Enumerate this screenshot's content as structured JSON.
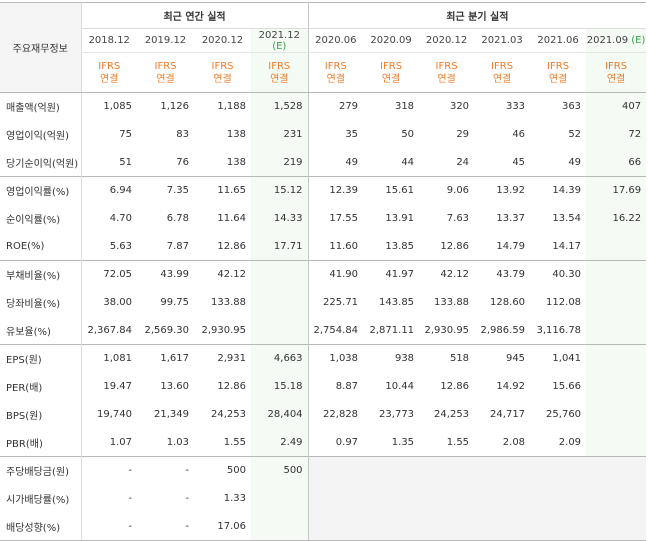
{
  "table": {
    "corner_label": "주요재무정보",
    "annual_header": "최근 연간 실적",
    "quarter_header": "최근 분기 실적",
    "annual_periods": [
      "2018.12",
      "2019.12",
      "2020.12",
      "2021.12"
    ],
    "annual_estimate_marker": "(E)",
    "quarter_periods": [
      "2020.06",
      "2020.09",
      "2020.12",
      "2021.03",
      "2021.06",
      "2021.09"
    ],
    "quarter_estimate_marker": "(E)",
    "ifrs_line1": "IFRS",
    "ifrs_line2": "연결",
    "rows": [
      {
        "label": "매출액(억원)",
        "annual": [
          "1,085",
          "1,126",
          "1,188",
          "1,528"
        ],
        "quarter": [
          "279",
          "318",
          "320",
          "333",
          "363",
          "407"
        ]
      },
      {
        "label": "영업이익(억원)",
        "annual": [
          "75",
          "83",
          "138",
          "231"
        ],
        "quarter": [
          "35",
          "50",
          "29",
          "46",
          "52",
          "72"
        ]
      },
      {
        "label": "당기순이익(억원)",
        "annual": [
          "51",
          "76",
          "138",
          "219"
        ],
        "quarter": [
          "49",
          "44",
          "24",
          "45",
          "49",
          "66"
        ]
      },
      {
        "label": "영업이익률(%)",
        "annual": [
          "6.94",
          "7.35",
          "11.65",
          "15.12"
        ],
        "quarter": [
          "12.39",
          "15.61",
          "9.06",
          "13.92",
          "14.39",
          "17.69"
        ]
      },
      {
        "label": "순이익률(%)",
        "annual": [
          "4.70",
          "6.78",
          "11.64",
          "14.33"
        ],
        "quarter": [
          "17.55",
          "13.91",
          "7.63",
          "13.37",
          "13.54",
          "16.22"
        ]
      },
      {
        "label": "ROE(%)",
        "annual": [
          "5.63",
          "7.87",
          "12.86",
          "17.71"
        ],
        "quarter": [
          "11.60",
          "13.85",
          "12.86",
          "14.79",
          "14.17",
          ""
        ]
      },
      {
        "label": "부채비율(%)",
        "annual": [
          "72.05",
          "43.99",
          "42.12",
          ""
        ],
        "quarter": [
          "41.90",
          "41.97",
          "42.12",
          "43.79",
          "40.30",
          ""
        ]
      },
      {
        "label": "당좌비율(%)",
        "annual": [
          "38.00",
          "99.75",
          "133.88",
          ""
        ],
        "quarter": [
          "225.71",
          "143.85",
          "133.88",
          "128.60",
          "112.08",
          ""
        ]
      },
      {
        "label": "유보율(%)",
        "annual": [
          "2,367.84",
          "2,569.30",
          "2,930.95",
          ""
        ],
        "quarter": [
          "2,754.84",
          "2,871.11",
          "2,930.95",
          "2,986.59",
          "3,116.78",
          ""
        ]
      },
      {
        "label": "EPS(원)",
        "annual": [
          "1,081",
          "1,617",
          "2,931",
          "4,663"
        ],
        "quarter": [
          "1,038",
          "938",
          "518",
          "945",
          "1,041",
          ""
        ]
      },
      {
        "label": "PER(배)",
        "annual": [
          "19.47",
          "13.60",
          "12.86",
          "15.18"
        ],
        "quarter": [
          "8.87",
          "10.44",
          "12.86",
          "14.92",
          "15.66",
          ""
        ]
      },
      {
        "label": "BPS(원)",
        "annual": [
          "19,740",
          "21,349",
          "24,253",
          "28,404"
        ],
        "quarter": [
          "22,828",
          "23,773",
          "24,253",
          "24,717",
          "25,760",
          ""
        ]
      },
      {
        "label": "PBR(배)",
        "annual": [
          "1.07",
          "1.03",
          "1.55",
          "2.49"
        ],
        "quarter": [
          "0.97",
          "1.35",
          "1.55",
          "2.08",
          "2.09",
          ""
        ]
      },
      {
        "label": "주당배당금(원)",
        "annual": [
          "-",
          "-",
          "500",
          "500"
        ],
        "quarter": [
          "",
          "",
          "",
          "",
          "",
          ""
        ]
      },
      {
        "label": "시가배당률(%)",
        "annual": [
          "-",
          "-",
          "1.33",
          ""
        ],
        "quarter": [
          "",
          "",
          "",
          "",
          "",
          ""
        ]
      },
      {
        "label": "배당성향(%)",
        "annual": [
          "-",
          "-",
          "17.06",
          ""
        ],
        "quarter": [
          "",
          "",
          "",
          "",
          "",
          ""
        ]
      }
    ]
  },
  "colors": {
    "ifrs_text": "#f07a25",
    "estimate_marker": "#3aa147",
    "estimate_column_bg": "#f4faf4",
    "empty_quarter_bg": "#f4f4f4"
  }
}
